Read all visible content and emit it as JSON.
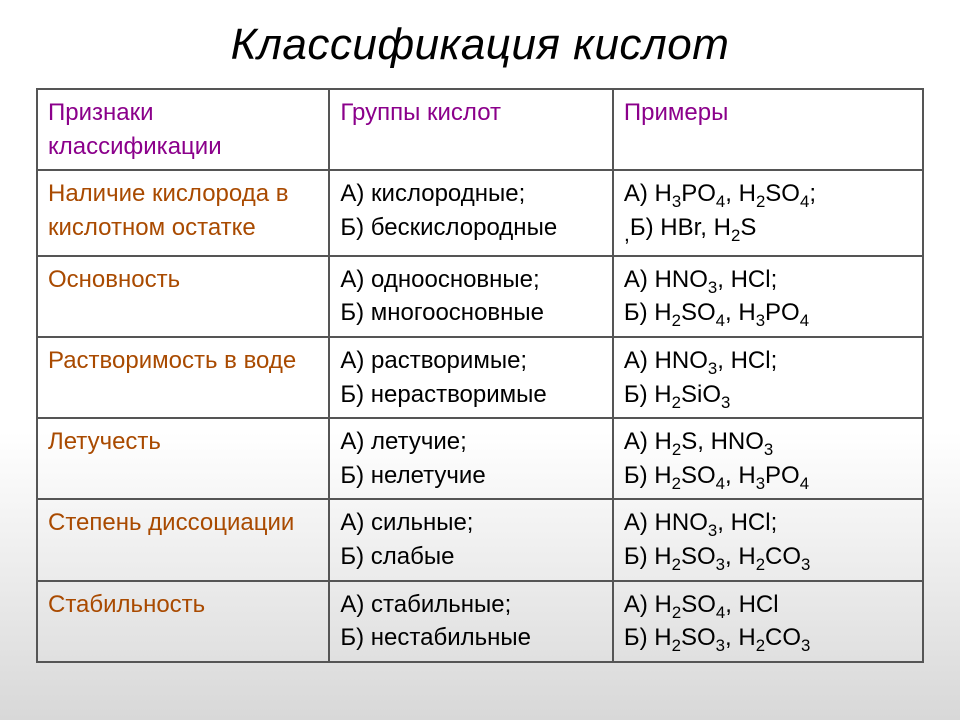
{
  "title": "Классификация кислот",
  "colors": {
    "header": "#8b008b",
    "row_label": "#a94a00",
    "body": "#000000",
    "border": "#555555"
  },
  "font_sizes": {
    "title": 44,
    "cell": 24
  },
  "columns": [
    "Признаки классификации",
    "Группы кислот",
    "Примеры"
  ],
  "rows": [
    {
      "label": "Наличие кислорода в кислотном остатке",
      "groups": [
        "А) кислородные;",
        "Б) бескислородные"
      ],
      "examples_html": [
        "А) H<sub>3</sub>PO<sub>4</sub>, H<sub>2</sub>SO<sub>4</sub>;",
        "Б) HBr, H<sub>2</sub>S"
      ],
      "examples_prefix_comma": true
    },
    {
      "label": "Основность",
      "groups": [
        "А) одноосновные;",
        "Б) многоосновные"
      ],
      "examples_html": [
        "А) HNO<sub>3</sub>, HCl;",
        "Б) H<sub>2</sub>SO<sub>4</sub>, H<sub>3</sub>PO<sub>4</sub>"
      ]
    },
    {
      "label": "Растворимость в воде",
      "groups": [
        "А) растворимые;",
        "Б) нерастворимые"
      ],
      "examples_html": [
        "А) HNO<sub>3</sub>, HCl;",
        "Б) H<sub>2</sub>SiO<sub>3</sub>"
      ]
    },
    {
      "label": "Летучесть",
      "groups": [
        "А) летучие;",
        "Б) нелетучие"
      ],
      "examples_html": [
        "А) H<sub>2</sub>S, HNO<sub>3</sub>",
        "Б) H<sub>2</sub>SO<sub>4</sub>, H<sub>3</sub>PO<sub>4</sub>"
      ]
    },
    {
      "label": "Степень диссоциации",
      "groups": [
        "А) сильные;",
        "Б) слабые"
      ],
      "examples_html": [
        "А) HNO<sub>3</sub>, HCl;",
        "Б) H<sub>2</sub>SO<sub>3</sub>, H<sub>2</sub>CO<sub>3</sub>"
      ]
    },
    {
      "label": "Стабильность",
      "groups": [
        "А) стабильные;",
        "Б) нестабильные"
      ],
      "examples_html": [
        "А) H<sub>2</sub>SO<sub>4</sub>, HCl",
        "Б) H<sub>2</sub>SO<sub>3</sub>, H<sub>2</sub>CO<sub>3</sub>"
      ]
    }
  ]
}
